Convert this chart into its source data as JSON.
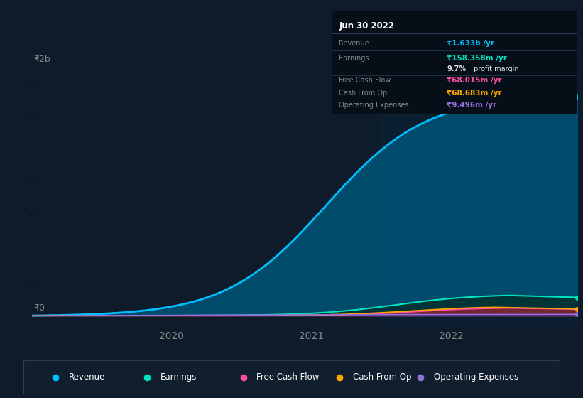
{
  "bg_color": "#0d1b2a",
  "plot_bg_color": "#0d1b2a",
  "title": "Jun 30 2022",
  "ylabel_text": "₹2b",
  "y0_text": "₹0",
  "x_ticks": [
    2020,
    2021,
    2022
  ],
  "ylim_max": 2000,
  "ylim_min": -80,
  "xlim_start": 2019.0,
  "xlim_end": 2022.9,
  "highlight_x_start": 2021.5,
  "highlight_x_end": 2022.9,
  "revenue_color": "#00bfff",
  "revenue_fill": "#005577",
  "earnings_color": "#00e5c0",
  "earnings_fill": "#003333",
  "fcf_color": "#ff4da6",
  "fcf_fill": "#7a1540",
  "cashop_color": "#ffa500",
  "cashop_fill": "#7a5500",
  "opex_color": "#9370db",
  "opex_fill": "#4a2080",
  "grid_color": "#1e3045",
  "highlight_color": "#0a2030",
  "info_bg": "#060e17",
  "info_border": "#2a3f55",
  "legend_bg": "#111e2d",
  "legend_border": "#2a3f55",
  "series_labels": [
    "Revenue",
    "Earnings",
    "Free Cash Flow",
    "Cash From Op",
    "Operating Expenses"
  ]
}
